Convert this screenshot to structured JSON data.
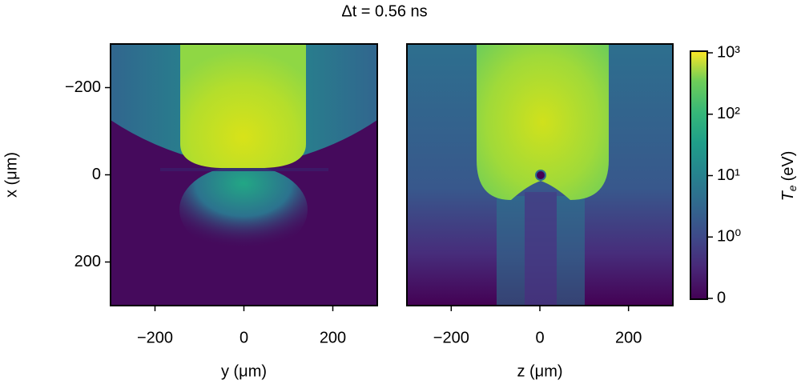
{
  "title": "Δt =  0.56 ns",
  "chart_data": [
    {
      "type": "heatmap",
      "xlabel": "y (μm)",
      "ylabel": "x (μm)",
      "xlim": [
        -300,
        300
      ],
      "ylim": [
        300,
        -300
      ],
      "xticks": [
        {
          "value": -200,
          "label": "−200"
        },
        0,
        200
      ],
      "yticks": [
        {
          "value": -200,
          "label": "−200"
        },
        0,
        200
      ]
    },
    {
      "type": "heatmap",
      "xlabel": "z (μm)",
      "xlim": [
        -300,
        300
      ],
      "ylim": [
        300,
        -300
      ],
      "xticks": [
        {
          "value": -200,
          "label": "−200"
        },
        0,
        200
      ]
    }
  ],
  "colorbar": {
    "symbol": "T",
    "subscript": "e",
    "unit": "(eV)",
    "scale": "symlog",
    "linthresh": 1,
    "clim": [
      0,
      1000
    ],
    "ticks": [
      0,
      {
        "value": 1,
        "label": "10⁰"
      },
      {
        "value": 10,
        "label": "10¹"
      },
      {
        "value": 100,
        "label": "10²"
      },
      {
        "value": 1000,
        "label": "10³"
      }
    ]
  }
}
